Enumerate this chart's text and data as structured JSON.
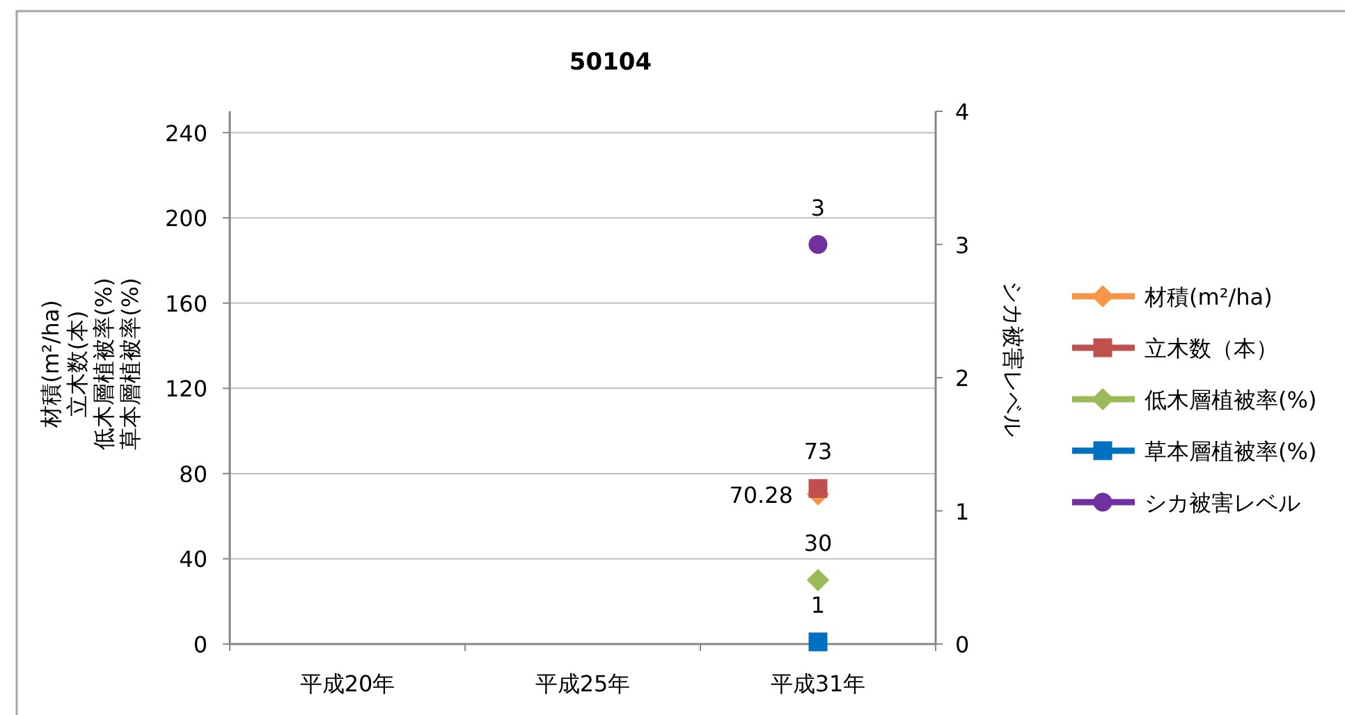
{
  "chart_data": {
    "type": "line",
    "title": "50104",
    "ylabel": "材積(m²/ha)\n立木数(本)\n低木層植被率(%)\n草本層植被率(%)",
    "y2label": "シカ被害レベル",
    "categories": [
      "平成20年",
      "平成25年",
      "平成31年"
    ],
    "series": [
      {
        "name": "材積(m²/ha)",
        "color": "#f79646",
        "marker": "diamond",
        "values": [
          null,
          null,
          70.28
        ]
      },
      {
        "name": "立木数（本）",
        "color": "#c0504d",
        "marker": "square",
        "values": [
          null,
          null,
          73
        ]
      },
      {
        "name": "低木層植被率(%)",
        "color": "#9bbb59",
        "marker": "diamond",
        "values": [
          null,
          null,
          30
        ]
      },
      {
        "name": "草本層植被率(%)",
        "color": "#0070c0",
        "marker": "square",
        "values": [
          null,
          null,
          1
        ]
      },
      {
        "name": "シカ被害レベル",
        "color": "#7030a0",
        "marker": "circle",
        "axis": "y2",
        "values": [
          null,
          null,
          3
        ]
      }
    ],
    "ylim": [
      0,
      250
    ],
    "yticks": [
      0,
      40,
      80,
      120,
      160,
      200,
      240
    ],
    "y2lim": [
      0,
      4
    ],
    "y2ticks": [
      0,
      1,
      2,
      3,
      4
    ],
    "grid": "y",
    "legend": "right",
    "data_labels": true
  }
}
